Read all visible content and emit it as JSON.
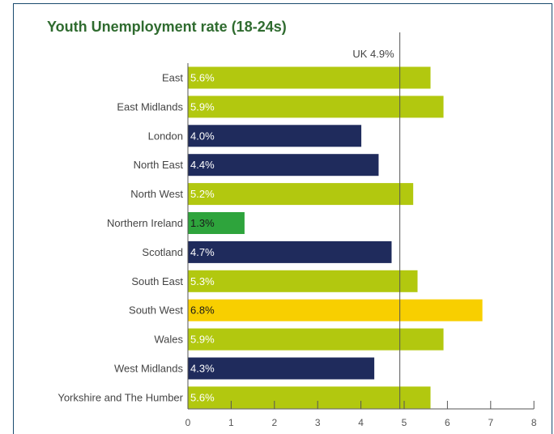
{
  "chart_data": {
    "type": "bar",
    "orientation": "horizontal",
    "title": "Youth Unemployment rate (18-24s)",
    "categories": [
      "East",
      "East Midlands",
      "London",
      "North East",
      "North West",
      "Northern Ireland",
      "Scotland",
      "South East",
      "South West",
      "Wales",
      "West Midlands",
      "Yorkshire and The Humber"
    ],
    "values": [
      5.6,
      5.9,
      4.0,
      4.4,
      5.2,
      1.3,
      4.7,
      5.3,
      6.8,
      5.9,
      4.3,
      5.6
    ],
    "value_labels": [
      "5.6%",
      "5.9%",
      "4.0%",
      "4.4%",
      "5.2%",
      "1.3%",
      "4.7%",
      "5.3%",
      "6.8%",
      "5.9%",
      "4.3%",
      "5.6%"
    ],
    "bar_colors": [
      "#b2c80f",
      "#b2c80f",
      "#1f2b5c",
      "#1f2b5c",
      "#b2c80f",
      "#2ea43c",
      "#1f2b5c",
      "#b2c80f",
      "#f8cf00",
      "#b2c80f",
      "#1f2b5c",
      "#b2c80f"
    ],
    "label_colors": [
      "#ffffff",
      "#ffffff",
      "#ffffff",
      "#ffffff",
      "#ffffff",
      "#1a1a1a",
      "#ffffff",
      "#ffffff",
      "#1a1a1a",
      "#ffffff",
      "#ffffff",
      "#ffffff"
    ],
    "reference_line": {
      "label": "UK 4.9%",
      "value": 4.9
    },
    "xlim": [
      0,
      8
    ],
    "xticks": [
      0,
      1,
      2,
      3,
      4,
      5,
      6,
      7,
      8
    ],
    "grid": false,
    "legend": "none"
  },
  "colors": {
    "title": "#2f6b2f",
    "frame": "#1a4a6e",
    "axis": "#555555"
  }
}
